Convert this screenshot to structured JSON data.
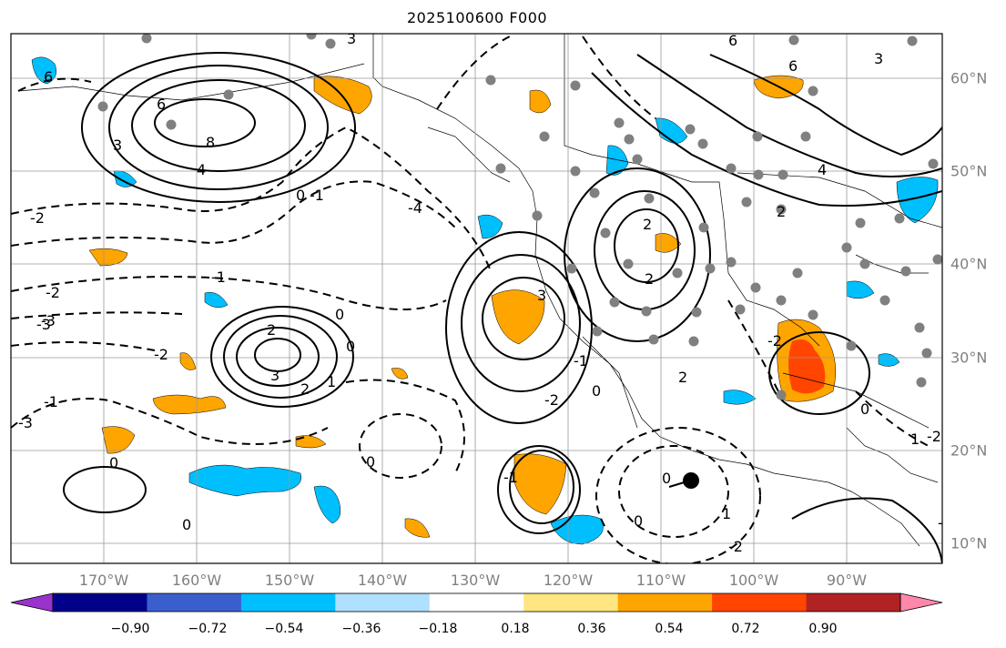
{
  "title": "2025100600 F000",
  "map": {
    "lon_labels": [
      "170°W",
      "160°W",
      "150°W",
      "140°W",
      "130°W",
      "120°W",
      "110°W",
      "100°W",
      "90°W"
    ],
    "lat_labels": [
      "60°N",
      "50°N",
      "40°N",
      "30°N",
      "20°N",
      "10°N"
    ],
    "contour_labels": [
      "6",
      "6",
      "8",
      "4",
      "3",
      "6",
      "6",
      "3",
      "3",
      "4",
      "2",
      "0",
      "-4",
      "-3",
      "-2",
      "-1",
      "-2",
      "-3",
      "-2",
      "-1",
      "-1",
      "2",
      "3",
      "2",
      "1",
      "0",
      "0",
      "-3",
      "-1",
      "3",
      "2",
      "2",
      "0",
      "0",
      "-2",
      "0",
      "0",
      "0",
      "1",
      "-1",
      "2",
      "-2",
      "0",
      "1",
      "-2",
      "-2",
      "-3",
      "0"
    ],
    "shading_colors": {
      "positive_light": "#ffe680",
      "positive_medium": "#ffa500",
      "positive_strong": "#ff4500",
      "negative_light": "#a6dcff",
      "negative_medium": "#00bfff",
      "negative_strong": "#3b5bcc"
    },
    "station_marker_color": "#808080",
    "storm_marker_color": "#000000"
  },
  "colorbar": {
    "tick_labels": [
      "−0.90",
      "−0.72",
      "−0.54",
      "−0.36",
      "−0.18",
      "0.18",
      "0.36",
      "0.54",
      "0.72",
      "0.90"
    ],
    "colors": [
      "#9933cc",
      "#00008b",
      "#3a5fcd",
      "#00bfff",
      "#b0e0ff",
      "#ffffff",
      "#ffe680",
      "#ffa500",
      "#ff4500",
      "#b22222",
      "#ff88aa"
    ]
  }
}
